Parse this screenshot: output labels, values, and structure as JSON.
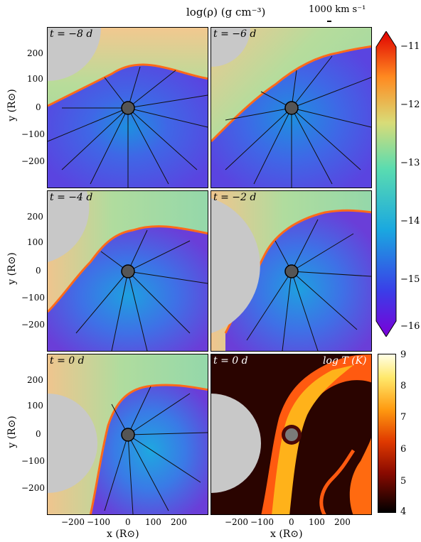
{
  "header": {
    "density_title": "log(ρ) (g cm⁻³)",
    "velocity_key": "1000 km s⁻¹"
  },
  "panels": [
    {
      "time": "t = −8 d"
    },
    {
      "time": "t = −6 d"
    },
    {
      "time": "t = −4 d"
    },
    {
      "time": "t = −2 d"
    },
    {
      "time": "t = 0 d"
    },
    {
      "time": "t = 0 d",
      "quantity": "log T (K)"
    }
  ],
  "axes": {
    "xlabel": "x (R⊙)",
    "ylabel": "y (R⊙)",
    "xticks": [
      "−200",
      "−100",
      "0",
      "100",
      "200"
    ],
    "yticks": [
      "200",
      "100",
      "0",
      "−100",
      "−200"
    ]
  },
  "colorbars": {
    "density": {
      "ticks": [
        "−11",
        "−12",
        "−13",
        "−14",
        "−15",
        "−16"
      ],
      "range": [
        -16,
        -11
      ]
    },
    "temperature": {
      "ticks": [
        "9",
        "8",
        "7",
        "6",
        "5",
        "4"
      ],
      "range": [
        4,
        9
      ]
    }
  },
  "colors": {
    "background_green": "#a8d890",
    "cavity_blue": "#3a6fe0",
    "shock_orange": "#ff6a1a",
    "companion_grey": "#c8c8c8"
  }
}
